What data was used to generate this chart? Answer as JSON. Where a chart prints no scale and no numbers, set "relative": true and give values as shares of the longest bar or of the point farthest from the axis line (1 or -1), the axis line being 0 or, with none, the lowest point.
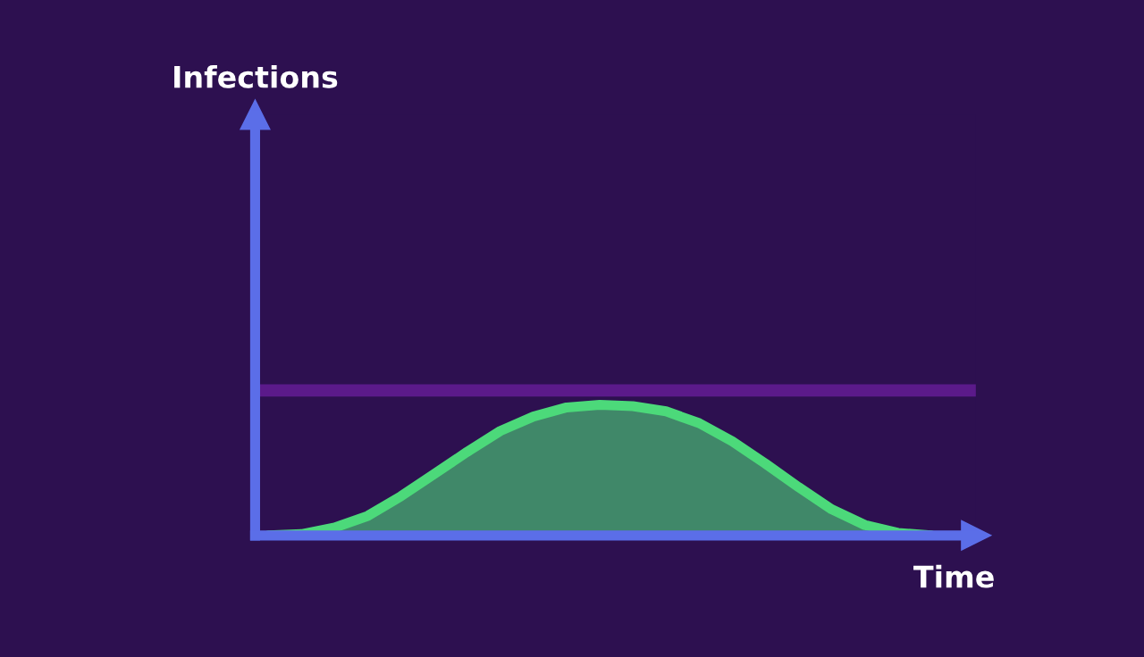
{
  "chart_data": {
    "type": "area",
    "relative": true,
    "xlabel": "Time",
    "annotations": [
      "Infections"
    ],
    "categories": [
      null,
      null,
      null,
      null,
      null,
      null,
      null,
      null,
      null,
      null,
      null,
      null,
      null,
      null,
      null,
      null,
      null,
      null,
      null,
      null,
      null
    ],
    "series": [
      {
        "color": "#4cd97a",
        "values": [
          0,
          0.01,
          0.06,
          0.15,
          0.3,
          0.47,
          0.64,
          0.8,
          0.91,
          0.98,
          1,
          0.99,
          0.95,
          0.86,
          0.72,
          0.55,
          0.37,
          0.2,
          0.08,
          0.02,
          0
        ]
      }
    ],
    "ref_lines": [
      {
        "axis": "y",
        "value": 1.11,
        "color": "#5b1a8a"
      }
    ],
    "legend": false
  }
}
